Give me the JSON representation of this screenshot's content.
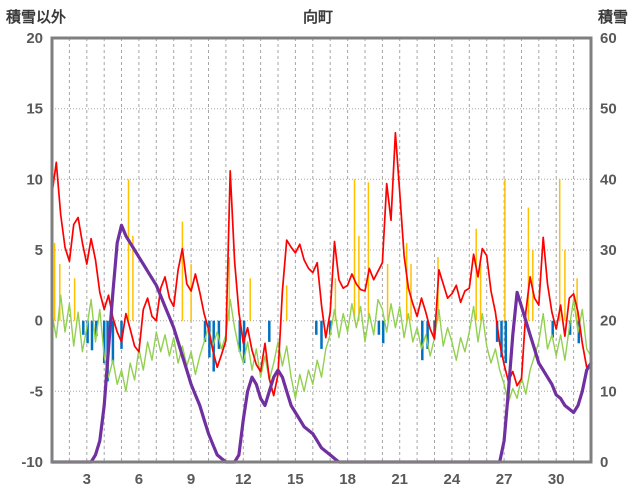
{
  "header": {
    "left_axis_title": "積雪以外",
    "title": "向町",
    "right_axis_title": "積雪"
  },
  "chart_data": {
    "type": "line",
    "title": "向町",
    "left_axis": {
      "label": "積雪以外",
      "min": -10,
      "max": 20,
      "ticks": [
        20,
        15,
        10,
        5,
        0,
        -5,
        -10
      ]
    },
    "right_axis": {
      "label": "積雪",
      "min": 0,
      "max": 60,
      "ticks": [
        60,
        50,
        40,
        30,
        20,
        10,
        0
      ]
    },
    "x_axis": {
      "min": 1,
      "max": 32,
      "gridline_interval": 1,
      "tick_positions": [
        3,
        6,
        9,
        12,
        15,
        18,
        21,
        24,
        27,
        30
      ],
      "tick_labels": [
        "3",
        "6",
        "9",
        "12",
        "15",
        "18",
        "21",
        "24",
        "27",
        "30"
      ]
    },
    "style": {
      "grid_color": "#a6a6a6",
      "border_color": "#7f7f7f",
      "background": "#ffffff"
    },
    "series": [
      {
        "name": "sunshine-spikes",
        "color": "#FFC000",
        "axis": "left",
        "type": "spike",
        "width": 1.5,
        "points": [
          [
            1.15,
            5.5
          ],
          [
            1.45,
            4.0
          ],
          [
            2.3,
            3.0
          ],
          [
            5.4,
            10.0
          ],
          [
            5.65,
            6.0
          ],
          [
            8.5,
            7.0
          ],
          [
            9.0,
            4.0
          ],
          [
            11.2,
            4.5
          ],
          [
            12.4,
            3.0
          ],
          [
            14.5,
            2.5
          ],
          [
            17.3,
            3.0
          ],
          [
            18.4,
            10.0
          ],
          [
            18.65,
            6.0
          ],
          [
            19.2,
            9.8
          ],
          [
            20.3,
            4.0
          ],
          [
            21.4,
            5.5
          ],
          [
            21.65,
            4.0
          ],
          [
            23.2,
            4.5
          ],
          [
            25.4,
            6.5
          ],
          [
            25.65,
            4.0
          ],
          [
            27.05,
            10.0
          ],
          [
            28.4,
            8.0
          ],
          [
            28.65,
            5.0
          ],
          [
            30.2,
            10.0
          ],
          [
            30.5,
            5.0
          ],
          [
            31.2,
            3.0
          ]
        ]
      },
      {
        "name": "precipitation-bars",
        "color": "#0070C0",
        "axis": "left",
        "type": "spike",
        "width": 2.5,
        "points": [
          [
            2.8,
            -1.0
          ],
          [
            3.05,
            -1.6
          ],
          [
            3.3,
            -2.1
          ],
          [
            3.55,
            -1.1
          ],
          [
            4.0,
            -3.0
          ],
          [
            4.2,
            -4.3
          ],
          [
            4.5,
            -3.0
          ],
          [
            5.0,
            -2.0
          ],
          [
            9.8,
            -1.5
          ],
          [
            10.05,
            -2.6
          ],
          [
            10.3,
            -3.6
          ],
          [
            10.6,
            -2.0
          ],
          [
            11.8,
            -2.2
          ],
          [
            12.05,
            -3.0
          ],
          [
            13.5,
            -1.5
          ],
          [
            16.2,
            -1.0
          ],
          [
            16.5,
            -2.0
          ],
          [
            17.0,
            -1.0
          ],
          [
            19.8,
            -1.0
          ],
          [
            20.05,
            -1.6
          ],
          [
            22.3,
            -2.8
          ],
          [
            22.6,
            -2.0
          ],
          [
            23.0,
            -1.0
          ],
          [
            26.6,
            -1.5
          ],
          [
            26.85,
            -2.6
          ],
          [
            27.1,
            -3.0
          ],
          [
            29.8,
            -1.2
          ],
          [
            30.8,
            -1.0
          ],
          [
            31.3,
            -1.6
          ]
        ]
      },
      {
        "name": "green-series",
        "color": "#92D050",
        "axis": "left",
        "type": "line",
        "width": 1.4,
        "x_start": 1,
        "x_step": 0.25,
        "values": [
          0.5,
          -1.2,
          1.8,
          -0.8,
          1.2,
          -1.8,
          0.6,
          -2.2,
          -0.5,
          1.5,
          -1.5,
          0.8,
          -2.5,
          -4.0,
          -2.8,
          -4.5,
          -3.5,
          -5.0,
          -3.0,
          -4.2,
          -2.0,
          -3.5,
          -1.5,
          -2.8,
          -0.8,
          -2.2,
          -1.0,
          -2.5,
          -1.2,
          -3.0,
          -1.8,
          -3.2,
          -2.2,
          -3.8,
          -2.5,
          -1.5,
          -0.5,
          -1.8,
          -0.8,
          -2.0,
          -1.0,
          1.5,
          -0.5,
          -2.0,
          -3.0,
          -1.5,
          -3.5,
          -2.0,
          -4.0,
          -2.5,
          -4.2,
          -3.0,
          -1.5,
          -3.2,
          -1.8,
          -4.0,
          -5.5,
          -3.8,
          -5.0,
          -3.5,
          -4.5,
          -2.8,
          -4.0,
          -2.0,
          -1.0,
          0.8,
          -1.2,
          0.5,
          -0.8,
          1.2,
          -0.5,
          1.0,
          -1.5,
          0.5,
          -1.0,
          1.5,
          0.8,
          -0.8,
          1.2,
          -0.5,
          1.0,
          -1.2,
          0.5,
          -1.5,
          -0.5,
          -2.0,
          -1.0,
          -2.5,
          -1.2,
          0.8,
          -1.8,
          -0.5,
          -1.5,
          -2.8,
          -1.2,
          -2.2,
          -0.8,
          1.0,
          -1.5,
          0.5,
          -1.8,
          -3.0,
          -2.0,
          -3.5,
          -4.5,
          -5.8,
          -4.8,
          -5.5,
          -4.0,
          -5.2,
          -3.5,
          -2.5,
          -1.5,
          0.5,
          -2.0,
          -1.0,
          -2.5,
          -1.0,
          -2.8,
          -0.5,
          1.5,
          -0.8,
          0.8,
          -2.0,
          -2.5
        ]
      },
      {
        "name": "temperature",
        "color": "#FF0000",
        "axis": "left",
        "type": "line",
        "width": 1.7,
        "x_start": 1,
        "x_step": 0.25,
        "values": [
          9.0,
          11.2,
          7.5,
          5.2,
          4.2,
          6.8,
          7.3,
          5.5,
          4.0,
          5.8,
          4.3,
          2.0,
          0.8,
          1.8,
          0.2,
          -0.8,
          -1.5,
          0.5,
          -0.6,
          -1.8,
          -2.2,
          0.8,
          1.6,
          0.3,
          0.0,
          2.3,
          3.1,
          1.6,
          1.0,
          3.6,
          5.1,
          2.6,
          2.1,
          3.3,
          2.0,
          0.5,
          -0.6,
          -2.1,
          -3.3,
          -2.4,
          -1.4,
          10.6,
          4.2,
          0.6,
          -1.6,
          -0.5,
          -2.1,
          -3.1,
          -3.6,
          -1.6,
          -4.1,
          -5.3,
          -3.8,
          2.1,
          5.7,
          5.2,
          4.8,
          5.4,
          4.3,
          3.7,
          3.4,
          4.1,
          1.1,
          -1.2,
          0.6,
          5.6,
          2.9,
          2.3,
          2.5,
          3.3,
          2.6,
          2.2,
          2.1,
          3.7,
          2.9,
          3.5,
          4.1,
          9.7,
          7.1,
          13.3,
          9.1,
          4.6,
          2.3,
          1.2,
          0.3,
          1.6,
          0.6,
          -0.6,
          -1.3,
          3.6,
          2.6,
          1.6,
          1.9,
          2.5,
          1.3,
          2.1,
          2.3,
          4.7,
          3.1,
          5.1,
          4.6,
          2.1,
          0.6,
          -1.6,
          -3.1,
          -4.3,
          -3.6,
          -4.6,
          -4.1,
          0.6,
          3.1,
          1.6,
          1.1,
          5.9,
          2.6,
          0.6,
          -0.6,
          1.1,
          -1.1,
          1.6,
          1.9,
          0.6,
          -1.6,
          -3.3,
          -3.0
        ]
      },
      {
        "name": "snow-depth",
        "color": "#7030A0",
        "axis": "right",
        "type": "line",
        "width": 3.2,
        "x_start": 1,
        "x_step": 0.25,
        "values": [
          0,
          0,
          0,
          0,
          0,
          0,
          0,
          0,
          0,
          0,
          1,
          3,
          8,
          16,
          24,
          31,
          33.5,
          32,
          31,
          30,
          29,
          28,
          27,
          26,
          25,
          23.5,
          22,
          20.5,
          19,
          17,
          15,
          13,
          11,
          9.5,
          8,
          6,
          4,
          2.5,
          1,
          0.5,
          0,
          0,
          0,
          1,
          6,
          10,
          12,
          11,
          9,
          8,
          10,
          12,
          13,
          12,
          10,
          8,
          7,
          6,
          5,
          4.5,
          4,
          3,
          2,
          1.5,
          1,
          0.5,
          0,
          0,
          0,
          0,
          0,
          0,
          0,
          0,
          0,
          0,
          0,
          0,
          0,
          0,
          0,
          0,
          0,
          0,
          0,
          0,
          0,
          0,
          0,
          0,
          0,
          0,
          0,
          0,
          0,
          0,
          0,
          0,
          0,
          0,
          0,
          0,
          0,
          0,
          3,
          10,
          18,
          24,
          22,
          20,
          18,
          16,
          14,
          13,
          12,
          11,
          9.5,
          9,
          8,
          7.5,
          7,
          8,
          10,
          13,
          14
        ]
      }
    ]
  }
}
